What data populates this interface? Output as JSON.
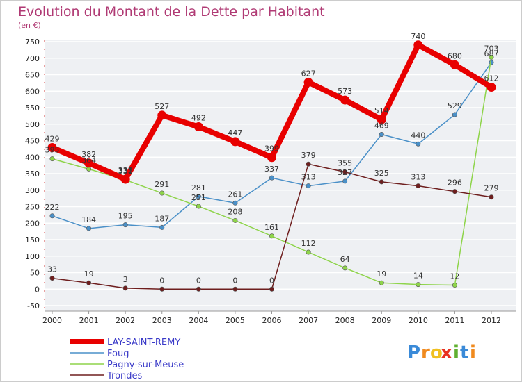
{
  "chart_data": {
    "type": "line",
    "title": "Evolution du Montant de la Dette par Habitant",
    "subtitle": "(en €)",
    "x": [
      "2000",
      "2001",
      "2002",
      "2003",
      "2004",
      "2005",
      "2006",
      "2007",
      "2008",
      "2009",
      "2010",
      "2011",
      "2012"
    ],
    "y_ticks": [
      -50,
      0,
      50,
      100,
      150,
      200,
      250,
      300,
      350,
      400,
      450,
      500,
      550,
      600,
      650,
      700,
      750
    ],
    "ylim": [
      -50,
      750
    ],
    "grid": "horizontal",
    "legend_position": "bottom-left",
    "series": [
      {
        "name": "LAY-SAINT-REMY",
        "color": "#e80000",
        "values": [
          429,
          382,
          333,
          527,
          492,
          447,
          399,
          627,
          573,
          514,
          740,
          680,
          612
        ]
      },
      {
        "name": "Foug",
        "color": "#4a90c8",
        "values": [
          222,
          184,
          195,
          187,
          281,
          261,
          337,
          313,
          327,
          469,
          440,
          529,
          687
        ]
      },
      {
        "name": "Pagny-sur-Meuse",
        "color": "#8ed44a",
        "values": [
          395,
          364,
          331,
          291,
          251,
          208,
          161,
          112,
          64,
          19,
          14,
          12,
          703
        ]
      },
      {
        "name": "Trondes",
        "color": "#6e1e1e",
        "values": [
          33,
          19,
          3,
          0,
          0,
          0,
          0,
          379,
          355,
          325,
          313,
          296,
          279
        ]
      }
    ]
  },
  "logo": {
    "text": "Proxiti",
    "letters": [
      "P",
      "r",
      "o",
      "x",
      "i",
      "t",
      "i"
    ],
    "colors": [
      "#3a8ad8",
      "#f08a1e",
      "#f0c020",
      "#e83020",
      "#60b030",
      "#3a8ad8",
      "#f08a1e"
    ]
  }
}
